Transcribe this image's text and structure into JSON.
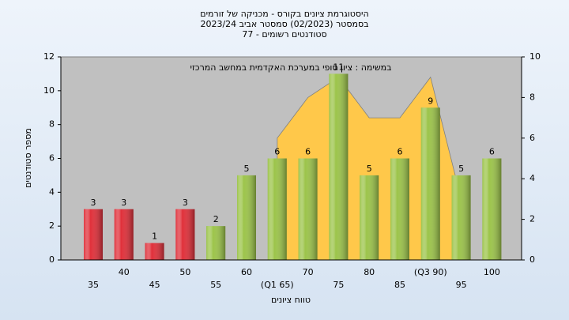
{
  "chart_data": {
    "type": "bar",
    "title": [
      "היסטוגרמת ציונים בקורס - מכניקה של זורמים",
      "בסמסטר  (02/2023)  סמסטר אביב 2023/24",
      "סטודנטים רשומים - 77"
    ],
    "annotation": "במשימה : ציון סופי במערכת האקדמית במחשב המרכזי",
    "ylabel": "מספר סטודנטים",
    "xlabel": "טווח ציונים",
    "categories": [
      "35",
      "40",
      "45",
      "50",
      "55",
      "60",
      "(Q1 65)",
      "70",
      "75",
      "80",
      "85",
      "(Q3 90)",
      "95",
      "100"
    ],
    "values": [
      3,
      3,
      1,
      3,
      2,
      5,
      6,
      6,
      11,
      5,
      6,
      9,
      5,
      6
    ],
    "colors": [
      "#e0303a",
      "#e0303a",
      "#e0303a",
      "#e0303a",
      "#9cc44a",
      "#9cc44a",
      "#9cc44a",
      "#9cc44a",
      "#9cc44a",
      "#9cc44a",
      "#9cc44a",
      "#9cc44a",
      "#9cc44a",
      "#9cc44a"
    ],
    "ylim": [
      0,
      12
    ],
    "yticks": [
      0,
      2,
      4,
      6,
      8,
      10,
      12
    ],
    "y2lim": [
      0,
      10
    ],
    "y2ticks": [
      0,
      2,
      4,
      6,
      8,
      10
    ],
    "area": {
      "axis": "y2",
      "color": "#ffc84a",
      "values": [
        null,
        null,
        null,
        null,
        null,
        null,
        6,
        8,
        9,
        7,
        7,
        9,
        3,
        null
      ]
    }
  }
}
